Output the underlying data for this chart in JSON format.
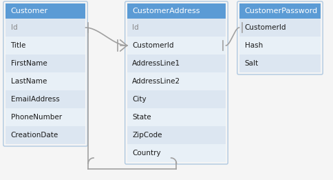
{
  "background_color": "#f5f5f5",
  "tables": [
    {
      "name": "Customer",
      "header": "Customer",
      "header_color": "#5b9bd5",
      "header_text_color": "#ffffff",
      "row_color_a": "#dce6f1",
      "row_color_b": "#e8f0f7",
      "fields": [
        "Id",
        "Title",
        "FirstName",
        "LastName",
        "EmailAddress",
        "PhoneNumber",
        "CreationDate"
      ],
      "id_fields": [
        "Id"
      ]
    },
    {
      "name": "CustomerAddress",
      "header": "CustomerAddress",
      "header_color": "#5b9bd5",
      "header_text_color": "#ffffff",
      "row_color_a": "#dce6f1",
      "row_color_b": "#e8f0f7",
      "fields": [
        "Id",
        "CustomerId",
        "AddressLine1",
        "AddressLine2",
        "City",
        "State",
        "ZipCode",
        "Country"
      ],
      "id_fields": [
        "Id"
      ]
    },
    {
      "name": "CustomerPassword",
      "header": "CustomerPassword",
      "header_color": "#5b9bd5",
      "header_text_color": "#ffffff",
      "row_color_a": "#dce6f1",
      "row_color_b": "#e8f0f7",
      "fields": [
        "CustomerId",
        "Hash",
        "Salt"
      ],
      "id_fields": []
    }
  ],
  "line_color": "#a0a0a0",
  "border_color": "#aec8e0",
  "id_text_color": "#888888",
  "field_text_color": "#1a1a1a",
  "font_size": 7.5,
  "header_font_size": 8.0
}
